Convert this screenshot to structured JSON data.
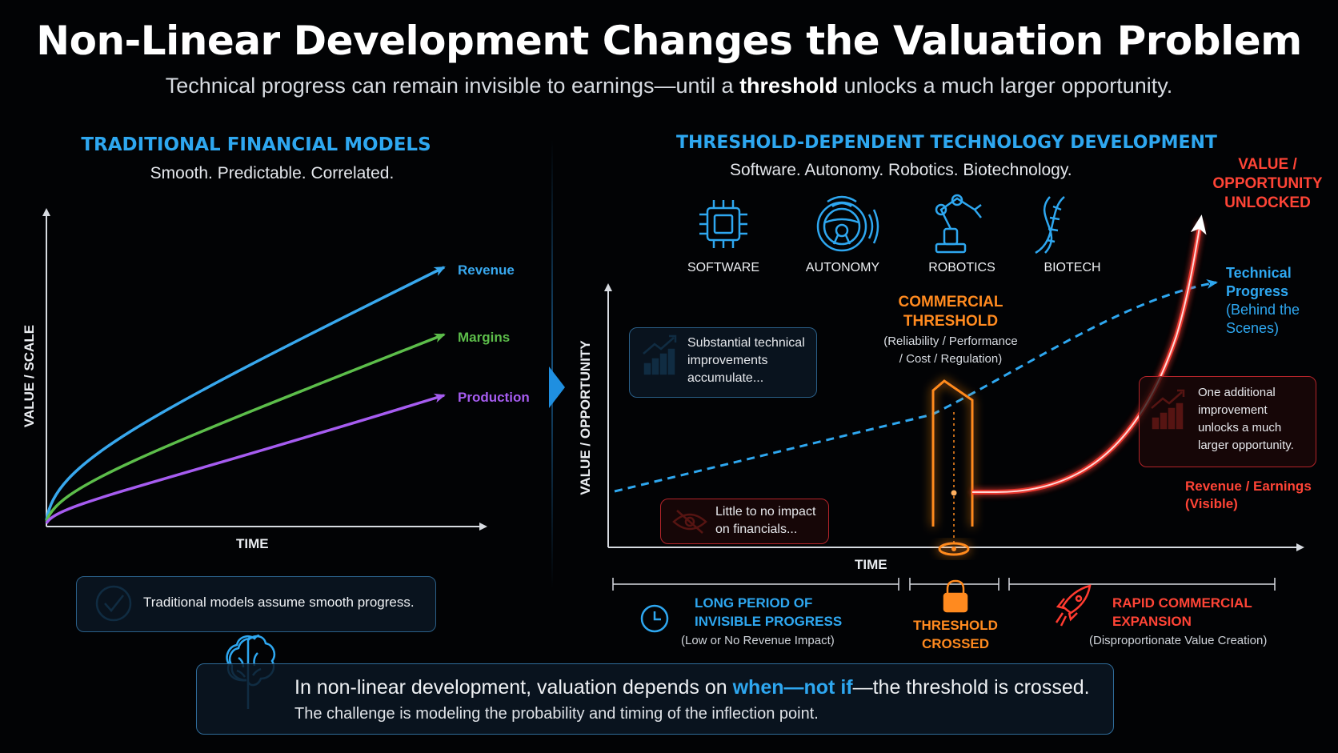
{
  "title": "Non-Linear Development Changes the Valuation Problem",
  "subtitle": {
    "part1": "Technical progress can remain invisible to earnings—until a ",
    "bold": "threshold",
    "part2": " unlocks a much larger opportunity."
  },
  "left_panel": {
    "heading": "TRADITIONAL FINANCIAL MODELS",
    "tagline": "Smooth. Predictable. Correlated.",
    "y_axis_label": "VALUE / SCALE",
    "x_axis_label": "TIME",
    "series": [
      {
        "name": "Revenue",
        "color": "#38a8ee"
      },
      {
        "name": "Margins",
        "color": "#5cbd4a"
      },
      {
        "name": "Production",
        "color": "#a65cf0"
      }
    ],
    "note": "Traditional models assume smooth progress.",
    "note_icon": "check-circle-icon"
  },
  "right_panel": {
    "heading": "THRESHOLD-DEPENDENT TECHNOLOGY DEVELOPMENT",
    "tagline": "Software. Autonomy. Robotics. Biotechnology.",
    "icons": [
      {
        "label": "SOFTWARE",
        "icon": "chip-icon"
      },
      {
        "label": "AUTONOMY",
        "icon": "steering-wheel-icon"
      },
      {
        "label": "ROBOTICS",
        "icon": "robot-arm-icon"
      },
      {
        "label": "BIOTECH",
        "icon": "dna-icon"
      }
    ],
    "y_axis_label": "VALUE / OPPORTUNITY",
    "x_axis_label": "TIME",
    "accumulate_note": {
      "line1": "Substantial technical",
      "line2": "improvements",
      "line3": "accumulate..."
    },
    "impact_note": {
      "line1": "Little to no impact",
      "line2": "on financials..."
    },
    "threshold": {
      "title_line1": "COMMERCIAL",
      "title_line2": "THRESHOLD",
      "detail_line1": "(Reliability / Performance",
      "detail_line2": "/ Cost / Regulation)"
    },
    "unlock_note": {
      "line1": "One additional",
      "line2": "improvement",
      "line3": "unlocks a much",
      "line4": "larger opportunity."
    },
    "value_label": {
      "line1": "VALUE /",
      "line2": "OPPORTUNITY",
      "line3": "UNLOCKED"
    },
    "tech_label": {
      "line1": "Technical",
      "line2": "Progress",
      "line3": "(Behind the",
      "line4": "Scenes)"
    },
    "revenue_label": {
      "line1": "Revenue / Earnings",
      "line2": "(Visible)"
    },
    "phases": [
      {
        "title_line1": "LONG PERIOD OF",
        "title_line2": "INVISIBLE PROGRESS",
        "detail": "(Low or No Revenue Impact)",
        "icon": "clock-icon"
      },
      {
        "title_line1": "THRESHOLD",
        "title_line2": "CROSSED",
        "icon": "padlock-icon"
      },
      {
        "title_line1": "RAPID COMMERCIAL",
        "title_line2": "EXPANSION",
        "detail": "(Disproportionate Value Creation)",
        "icon": "rocket-icon"
      }
    ],
    "colors": {
      "technical": "#2ea7f0",
      "revenue": "#ff3b30",
      "threshold": "#ff8a1f"
    }
  },
  "footer": {
    "line1_a": "In non-linear development, valuation depends on ",
    "line1_when": "when",
    "line1_dash1": "—",
    "line1_notif": "not if",
    "line1_b": "—the threshold is crossed.",
    "line2": "The challenge is modeling the probability and timing of the inflection point.",
    "icon": "brain-icon"
  }
}
